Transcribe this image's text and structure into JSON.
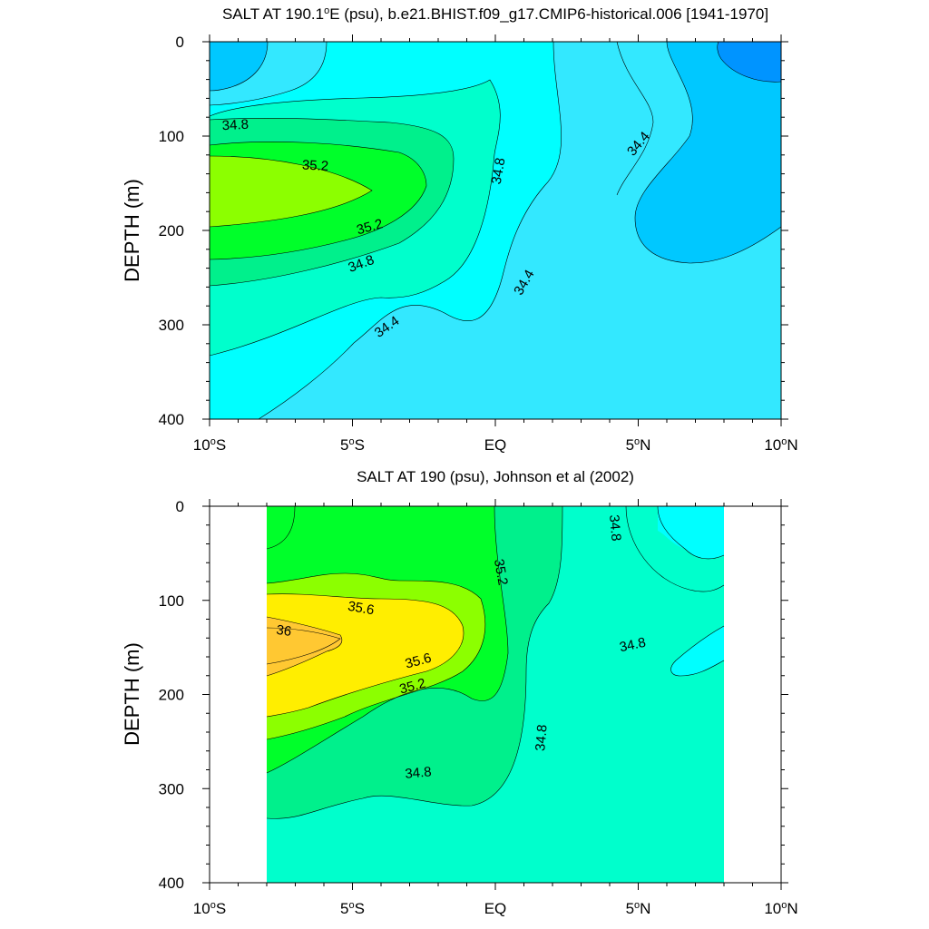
{
  "chart_data": [
    {
      "type": "heatmap",
      "title": "SALT AT 190.1°E (psu), b.e21.BHIST.f09_g17.CMIP6-historical.006 [1941-1970]",
      "title_parts": {
        "pre": "SALT AT 190.1",
        "sup": "o",
        "post": "E (psu), b.e21.BHIST.f09_g17.CMIP6-historical.006 [1941-1970]"
      },
      "xlabel": "",
      "ylabel": "DEPTH (m)",
      "xlim": [
        -10,
        10
      ],
      "ylim": [
        400,
        0
      ],
      "x_ticks": [
        {
          "value": -10,
          "pre": "10",
          "sup": "o",
          "post": "S"
        },
        {
          "value": -5,
          "pre": "5",
          "sup": "o",
          "post": "S"
        },
        {
          "value": 0,
          "pre": "EQ",
          "sup": "",
          "post": ""
        },
        {
          "value": 5,
          "pre": "5",
          "sup": "o",
          "post": "N"
        },
        {
          "value": 10,
          "pre": "10",
          "sup": "o",
          "post": "N"
        }
      ],
      "y_ticks": [
        0,
        100,
        200,
        300,
        400
      ],
      "contour_labels": [
        {
          "text": "34.8",
          "lat": -9.1,
          "depth": 88,
          "angle": -3
        },
        {
          "text": "35.2",
          "lat": -6.3,
          "depth": 131,
          "angle": 3
        },
        {
          "text": "35.2",
          "lat": -4.4,
          "depth": 196,
          "angle": -15
        },
        {
          "text": "34.8",
          "lat": -4.7,
          "depth": 235,
          "angle": -20
        },
        {
          "text": "34.4",
          "lat": -3.8,
          "depth": 302,
          "angle": -35
        },
        {
          "text": "34.8",
          "lat": 0.1,
          "depth": 137,
          "angle": -80
        },
        {
          "text": "34.4",
          "lat": 1.0,
          "depth": 255,
          "angle": -60
        },
        {
          "text": "34.4",
          "lat": 5.0,
          "depth": 108,
          "angle": -50
        }
      ]
    },
    {
      "type": "heatmap",
      "title": "SALT AT 190 (psu), Johnson et al (2002)",
      "xlabel": "",
      "ylabel": "DEPTH (m)",
      "xlim": [
        -10,
        10
      ],
      "ylim": [
        400,
        0
      ],
      "data_lat_range": [
        -8,
        8
      ],
      "x_ticks": [
        {
          "value": -10,
          "pre": "10",
          "sup": "o",
          "post": "S"
        },
        {
          "value": -5,
          "pre": "5",
          "sup": "o",
          "post": "S"
        },
        {
          "value": 0,
          "pre": "EQ",
          "sup": "",
          "post": ""
        },
        {
          "value": 5,
          "pre": "5",
          "sup": "o",
          "post": "N"
        },
        {
          "value": 10,
          "pre": "10",
          "sup": "o",
          "post": "N"
        }
      ],
      "y_ticks": [
        0,
        100,
        200,
        300,
        400
      ],
      "contour_labels": [
        {
          "text": "36",
          "lat": -7.4,
          "depth": 132,
          "angle": 8
        },
        {
          "text": "35.6",
          "lat": -4.7,
          "depth": 108,
          "angle": 10
        },
        {
          "text": "35.6",
          "lat": -2.7,
          "depth": 164,
          "angle": -15
        },
        {
          "text": "35.2",
          "lat": -2.9,
          "depth": 191,
          "angle": -15
        },
        {
          "text": "35.2",
          "lat": 0.2,
          "depth": 70,
          "angle": 80
        },
        {
          "text": "34.8",
          "lat": 1.6,
          "depth": 246,
          "angle": -85
        },
        {
          "text": "34.8",
          "lat": -2.7,
          "depth": 283,
          "angle": -5
        },
        {
          "text": "34.8",
          "lat": 4.2,
          "depth": 23,
          "angle": 85
        },
        {
          "text": "34.8",
          "lat": 4.8,
          "depth": 147,
          "angle": -12
        }
      ]
    }
  ],
  "palette": {
    "c1": "#0094ff",
    "c2": "#00c8ff",
    "c3": "#33e8ff",
    "c4": "#00ffff",
    "c5": "#00ffcc",
    "c6": "#00f08c",
    "c7": "#00ff2a",
    "c8": "#8cff00",
    "c9": "#ffee00",
    "c10": "#ffc832"
  }
}
